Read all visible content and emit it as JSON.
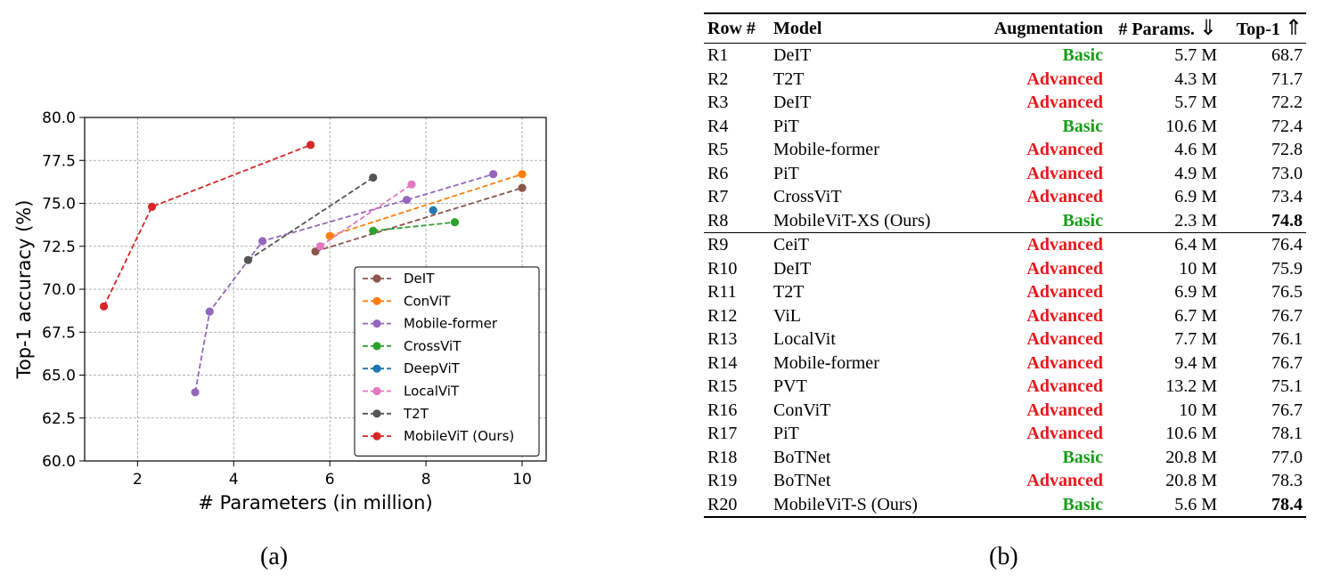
{
  "captions": {
    "a": "(a)",
    "b": "(b)"
  },
  "colors": {
    "basic": "#1a9b1a",
    "advanced": "#e8191c"
  },
  "chart_data": {
    "type": "line",
    "xlabel": "# Parameters (in million)",
    "ylabel": "Top-1 accuracy (%)",
    "xlim": [
      0.9,
      10.5
    ],
    "ylim": [
      60.0,
      80.0
    ],
    "xticks": [
      2,
      4,
      6,
      8,
      10
    ],
    "xtick_labels": [
      "2",
      "4",
      "6",
      "8",
      "10"
    ],
    "yticks": [
      60.0,
      62.5,
      65.0,
      67.5,
      70.0,
      72.5,
      75.0,
      77.5,
      80.0
    ],
    "ytick_labels": [
      "60.0",
      "62.5",
      "65.0",
      "67.5",
      "70.0",
      "72.5",
      "75.0",
      "77.5",
      "80.0"
    ],
    "grid": true,
    "legend_position": "lower-right",
    "line_style": "dashed",
    "series": [
      {
        "name": "DeIT",
        "color": "#8c564b",
        "x": [
          5.7,
          10.0
        ],
        "y": [
          72.2,
          75.9
        ]
      },
      {
        "name": "ConViT",
        "color": "#ff7f0e",
        "x": [
          6.0,
          10.0
        ],
        "y": [
          73.1,
          76.7
        ]
      },
      {
        "name": "Mobile-former",
        "color": "#9467bd",
        "x": [
          3.2,
          3.5,
          4.6,
          7.6,
          9.4
        ],
        "y": [
          64.0,
          68.7,
          72.8,
          75.2,
          76.7
        ]
      },
      {
        "name": "CrossViT",
        "color": "#2ca02c",
        "x": [
          6.9,
          8.6
        ],
        "y": [
          73.4,
          73.9
        ]
      },
      {
        "name": "DeepViT",
        "color": "#1f77b4",
        "x": [
          8.15
        ],
        "y": [
          74.6
        ]
      },
      {
        "name": "LocalViT",
        "color": "#e377c2",
        "x": [
          5.8,
          7.7
        ],
        "y": [
          72.5,
          76.1
        ]
      },
      {
        "name": "T2T",
        "color": "#555555",
        "x": [
          4.3,
          6.9
        ],
        "y": [
          71.7,
          76.5
        ]
      },
      {
        "name": "MobileViT (Ours)",
        "color": "#d62728",
        "x": [
          1.3,
          2.3,
          5.6
        ],
        "y": [
          69.0,
          74.8,
          78.4
        ]
      }
    ]
  },
  "table": {
    "headers": {
      "row": "Row #",
      "model": "Model",
      "augmentation": "Augmentation",
      "params": "# Params.",
      "top1": "Top-1"
    },
    "rows": [
      {
        "row": "R1",
        "model": "DeIT",
        "aug": "Basic",
        "params": "5.7 M",
        "top1": "68.7",
        "bold": false
      },
      {
        "row": "R2",
        "model": "T2T",
        "aug": "Advanced",
        "params": "4.3 M",
        "top1": "71.7",
        "bold": false
      },
      {
        "row": "R3",
        "model": "DeIT",
        "aug": "Advanced",
        "params": "5.7 M",
        "top1": "72.2",
        "bold": false
      },
      {
        "row": "R4",
        "model": "PiT",
        "aug": "Basic",
        "params": "10.6 M",
        "top1": "72.4",
        "bold": false
      },
      {
        "row": "R5",
        "model": "Mobile-former",
        "aug": "Advanced",
        "params": "4.6 M",
        "top1": "72.8",
        "bold": false
      },
      {
        "row": "R6",
        "model": "PiT",
        "aug": "Advanced",
        "params": "4.9 M",
        "top1": "73.0",
        "bold": false
      },
      {
        "row": "R7",
        "model": "CrossViT",
        "aug": "Advanced",
        "params": "6.9 M",
        "top1": "73.4",
        "bold": false
      },
      {
        "row": "R8",
        "model": "MobileViT-XS (Ours)",
        "aug": "Basic",
        "params": "2.3 M",
        "top1": "74.8",
        "bold": true
      },
      {
        "row": "R9",
        "model": "CeiT",
        "aug": "Advanced",
        "params": "6.4 M",
        "top1": "76.4",
        "bold": false,
        "group_break": true
      },
      {
        "row": "R10",
        "model": "DeIT",
        "aug": "Advanced",
        "params": "10 M",
        "top1": "75.9",
        "bold": false
      },
      {
        "row": "R11",
        "model": "T2T",
        "aug": "Advanced",
        "params": "6.9 M",
        "top1": "76.5",
        "bold": false
      },
      {
        "row": "R12",
        "model": "ViL",
        "aug": "Advanced",
        "params": "6.7 M",
        "top1": "76.7",
        "bold": false
      },
      {
        "row": "R13",
        "model": "LocalVit",
        "aug": "Advanced",
        "params": "7.7 M",
        "top1": "76.1",
        "bold": false
      },
      {
        "row": "R14",
        "model": "Mobile-former",
        "aug": "Advanced",
        "params": "9.4 M",
        "top1": "76.7",
        "bold": false
      },
      {
        "row": "R15",
        "model": "PVT",
        "aug": "Advanced",
        "params": "13.2 M",
        "top1": "75.1",
        "bold": false
      },
      {
        "row": "R16",
        "model": "ConViT",
        "aug": "Advanced",
        "params": "10 M",
        "top1": "76.7",
        "bold": false
      },
      {
        "row": "R17",
        "model": "PiT",
        "aug": "Advanced",
        "params": "10.6 M",
        "top1": "78.1",
        "bold": false
      },
      {
        "row": "R18",
        "model": "BoTNet",
        "aug": "Basic",
        "params": "20.8 M",
        "top1": "77.0",
        "bold": false
      },
      {
        "row": "R19",
        "model": "BoTNet",
        "aug": "Advanced",
        "params": "20.8 M",
        "top1": "78.3",
        "bold": false
      },
      {
        "row": "R20",
        "model": "MobileViT-S (Ours)",
        "aug": "Basic",
        "params": "5.6 M",
        "top1": "78.4",
        "bold": true
      }
    ]
  }
}
